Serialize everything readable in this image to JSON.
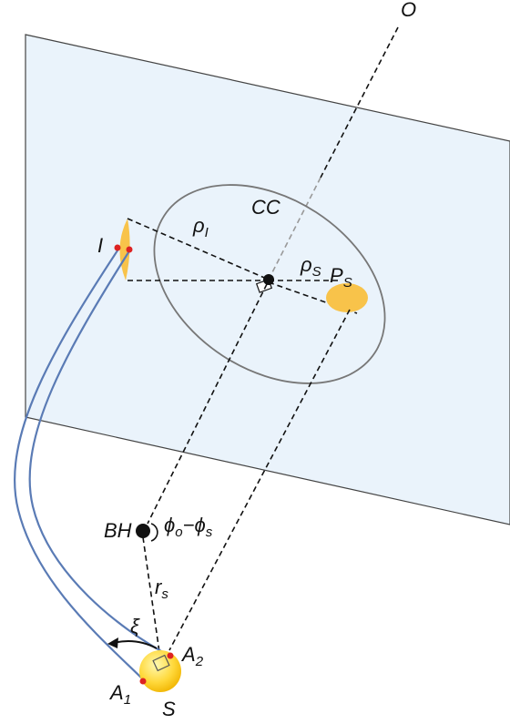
{
  "labels": {
    "O": {
      "text": "O"
    },
    "CC": {
      "text": "CC"
    },
    "rho_I": {
      "text": "ρ",
      "sub": "I"
    },
    "rho_S": {
      "text": "ρ",
      "sub": "S"
    },
    "P_S": {
      "text": "P",
      "sub": "S"
    },
    "I": {
      "text": "I"
    },
    "BH": {
      "text": "BH"
    },
    "phi": {
      "text": "ϕ",
      "sub": "o",
      "rest": "−ϕ",
      "sub2": "s"
    },
    "r_s": {
      "text": "r",
      "sub": "s"
    },
    "xi": {
      "text": "ξ"
    },
    "A_2": {
      "text": "A",
      "sub": "2"
    },
    "A_1": {
      "text": "A",
      "sub": "1"
    },
    "S": {
      "text": "S"
    }
  }
}
